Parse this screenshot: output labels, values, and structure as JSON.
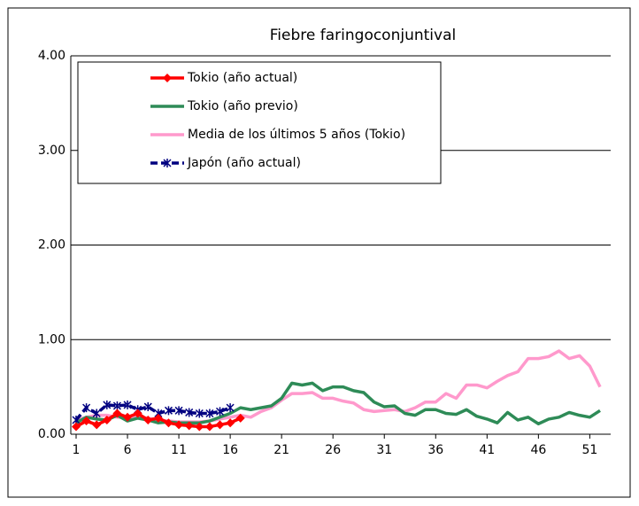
{
  "chart_data": {
    "type": "line",
    "title": "Fiebre faringoconjuntival",
    "categories": [
      "1",
      null,
      null,
      null,
      null,
      "6",
      null,
      null,
      null,
      null,
      "11",
      null,
      null,
      null,
      null,
      "16",
      null,
      null,
      null,
      null,
      "21",
      null,
      null,
      null,
      null,
      "26",
      null,
      null,
      null,
      null,
      "31",
      null,
      null,
      null,
      null,
      "36",
      null,
      null,
      null,
      null,
      "41",
      null,
      null,
      null,
      null,
      "46",
      null,
      null,
      null,
      null,
      "51",
      null
    ],
    "ylim": [
      0,
      4
    ],
    "yticks": [
      {
        "value": 0,
        "label": "0.00"
      },
      {
        "value": 1,
        "label": "1.00"
      },
      {
        "value": 2,
        "label": "2.00"
      },
      {
        "value": 3,
        "label": "3.00"
      },
      {
        "value": 4,
        "label": "4.00"
      }
    ],
    "grid": true,
    "legend": "top-left",
    "series": [
      {
        "name": "Tokio (año actual)",
        "color": "#ff0000",
        "marker": "diamond",
        "values": [
          0.08,
          0.14,
          0.1,
          0.15,
          0.22,
          0.18,
          0.22,
          0.15,
          0.17,
          0.12,
          0.1,
          0.09,
          0.08,
          0.08,
          0.1,
          0.12,
          0.17,
          null,
          null,
          null,
          null,
          null,
          null,
          null,
          null,
          null,
          null,
          null,
          null,
          null,
          null,
          null,
          null,
          null,
          null,
          null,
          null,
          null,
          null,
          null,
          null,
          null,
          null,
          null,
          null,
          null,
          null,
          null,
          null,
          null,
          null,
          null
        ]
      },
      {
        "name": "Tokio (año previo)",
        "color": "#2e8b57",
        "marker": "none",
        "values": [
          0.12,
          0.18,
          0.16,
          0.15,
          0.2,
          0.14,
          0.17,
          0.15,
          0.12,
          0.13,
          0.12,
          0.12,
          0.12,
          0.14,
          0.18,
          0.22,
          0.28,
          0.26,
          0.28,
          0.3,
          0.38,
          0.54,
          0.52,
          0.54,
          0.46,
          0.5,
          0.5,
          0.46,
          0.44,
          0.34,
          0.29,
          0.3,
          0.22,
          0.2,
          0.26,
          0.26,
          0.22,
          0.21,
          0.26,
          0.19,
          0.16,
          0.12,
          0.23,
          0.15,
          0.18,
          0.11,
          0.16,
          0.18,
          0.23,
          0.2,
          0.18,
          0.25
        ]
      },
      {
        "name": "Media de los últimos 5 años (Tokio)",
        "color": "#ff99cc",
        "marker": "none",
        "values": [
          0.15,
          0.18,
          0.2,
          0.2,
          0.18,
          0.17,
          0.18,
          0.17,
          0.15,
          0.14,
          0.13,
          0.13,
          0.13,
          0.14,
          0.16,
          0.18,
          0.2,
          0.18,
          0.24,
          0.28,
          0.36,
          0.43,
          0.43,
          0.44,
          0.38,
          0.38,
          0.35,
          0.33,
          0.26,
          0.24,
          0.25,
          0.26,
          0.24,
          0.28,
          0.34,
          0.34,
          0.43,
          0.38,
          0.52,
          0.52,
          0.49,
          0.56,
          0.62,
          0.66,
          0.8,
          0.8,
          0.82,
          0.88,
          0.8,
          0.83,
          0.72,
          0.5
        ]
      },
      {
        "name": "Japón (año actual)",
        "color": "#000080",
        "marker": "star",
        "dashed": true,
        "values": [
          0.15,
          0.28,
          0.22,
          0.31,
          0.3,
          0.31,
          0.26,
          0.29,
          0.22,
          0.25,
          0.25,
          0.23,
          0.22,
          0.22,
          0.24,
          0.28,
          null,
          null,
          null,
          null,
          null,
          null,
          null,
          null,
          null,
          null,
          null,
          null,
          null,
          null,
          null,
          null,
          null,
          null,
          null,
          null,
          null,
          null,
          null,
          null,
          null,
          null,
          null,
          null,
          null,
          null,
          null,
          null,
          null,
          null,
          null,
          null
        ]
      }
    ]
  }
}
